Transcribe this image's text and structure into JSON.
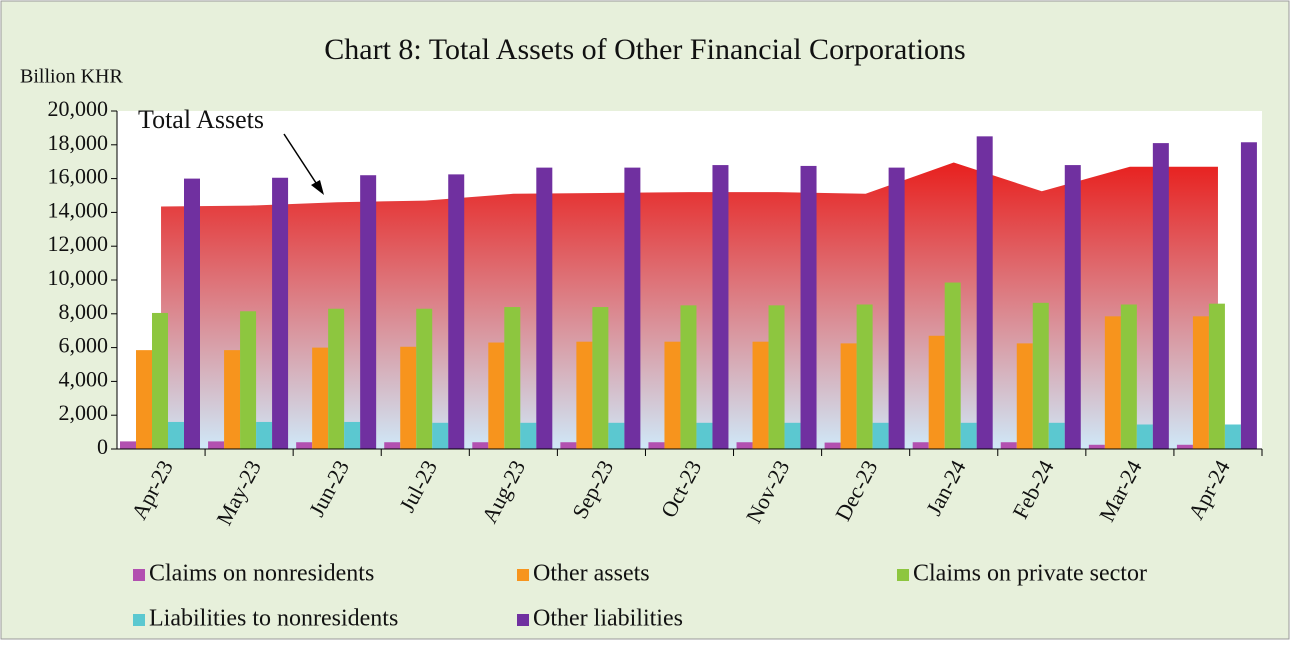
{
  "chart_data": {
    "type": "bar",
    "title": "Chart 8: Total Assets of Other Financial Corporations",
    "y_axis_label": "Billion KHR",
    "categories": [
      "Apr-23",
      "May-23",
      "Jun-23",
      "Jul-23",
      "Aug-23",
      "Sep-23",
      "Oct-23",
      "Nov-23",
      "Dec-23",
      "Jan-24",
      "Feb-24",
      "Mar-24",
      "Apr-24"
    ],
    "series": [
      {
        "name": "Claims on nonresidents",
        "color": "#b250b0",
        "values": [
          450,
          450,
          400,
          400,
          400,
          400,
          400,
          400,
          380,
          400,
          400,
          250,
          250
        ]
      },
      {
        "name": "Other assets",
        "color": "#f7941d",
        "values": [
          5850,
          5850,
          6000,
          6050,
          6300,
          6350,
          6350,
          6350,
          6250,
          6700,
          6250,
          7850,
          7850
        ]
      },
      {
        "name": "Claims on private sector",
        "color": "#8dc63f",
        "values": [
          8050,
          8150,
          8300,
          8300,
          8400,
          8400,
          8500,
          8500,
          8550,
          9850,
          8650,
          8550,
          8600
        ]
      },
      {
        "name": "Liabilities to nonresidents",
        "color": "#5bc8d0",
        "values": [
          1600,
          1600,
          1600,
          1550,
          1550,
          1550,
          1550,
          1550,
          1550,
          1550,
          1550,
          1450,
          1450
        ]
      },
      {
        "name": "Other liabilities",
        "color": "#7030a0",
        "values": [
          16000,
          16050,
          16200,
          16250,
          16650,
          16650,
          16800,
          16750,
          16650,
          18500,
          16800,
          18100,
          18150
        ]
      }
    ],
    "area": {
      "name": "Total Assets",
      "color_top": "#e8201e",
      "color_bottom": "#cfe8f8",
      "values": [
        14350,
        14400,
        14600,
        14700,
        15100,
        15150,
        15200,
        15200,
        15100,
        16950,
        15250,
        16700,
        16700
      ]
    },
    "ylim": [
      0,
      20000
    ],
    "yticks": [
      0,
      {
        "value": 2000,
        "label": "2,000"
      },
      {
        "value": 4000,
        "label": "4,000"
      },
      {
        "value": 6000,
        "label": "6,000"
      },
      {
        "value": 8000,
        "label": "8,000"
      },
      {
        "value": 10000,
        "label": "10,000"
      },
      {
        "value": 12000,
        "label": "12,000"
      },
      {
        "value": 14000,
        "label": "14,000"
      },
      {
        "value": 16000,
        "label": "16,000"
      },
      {
        "value": 18000,
        "label": "18,000"
      },
      {
        "value": 20000,
        "label": "20,000"
      }
    ]
  }
}
